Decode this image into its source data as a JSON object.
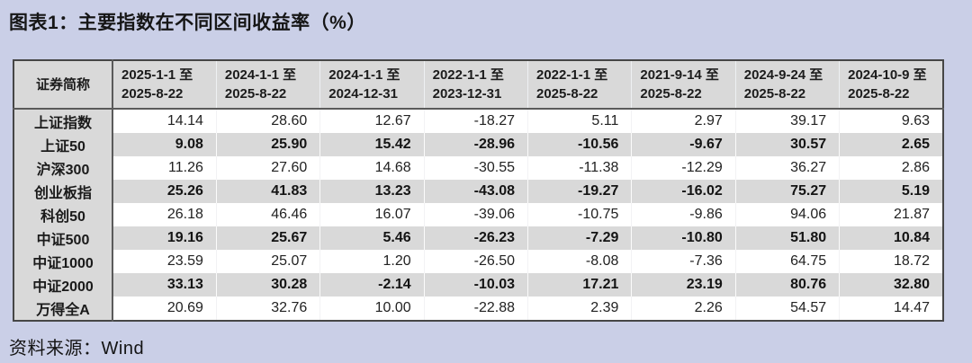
{
  "title": "图表1：主要指数在不同区间收益率（%）",
  "source": "资料来源：Wind",
  "colors": {
    "page_background": "#cacfe7",
    "header_and_stripe_gray": "#d9d9d9",
    "table_border": "#464646",
    "text": "#1a1a1a",
    "white_row": "#ffffff"
  },
  "chart_data": {
    "type": "table",
    "title": "图表1：主要指数在不同区间收益率（%）",
    "row_header_label": "证券简称",
    "period_columns": [
      {
        "line1": "2025-1-1 至",
        "line2": "2025-8-22"
      },
      {
        "line1": "2024-1-1 至",
        "line2": "2025-8-22"
      },
      {
        "line1": "2024-1-1 至",
        "line2": "2024-12-31"
      },
      {
        "line1": "2022-1-1 至",
        "line2": "2023-12-31"
      },
      {
        "line1": "2022-1-1 至",
        "line2": "2025-8-22"
      },
      {
        "line1": "2021-9-14 至",
        "line2": "2025-8-22"
      },
      {
        "line1": "2024-9-24 至",
        "line2": "2025-8-22"
      },
      {
        "line1": "2024-10-9 至",
        "line2": "2025-8-22"
      }
    ],
    "rows": [
      {
        "name": "上证指数",
        "values": [
          "14.14",
          "28.60",
          "12.67",
          "-18.27",
          "5.11",
          "2.97",
          "39.17",
          "9.63"
        ]
      },
      {
        "name": "上证50",
        "values": [
          "9.08",
          "25.90",
          "15.42",
          "-28.96",
          "-10.56",
          "-9.67",
          "30.57",
          "2.65"
        ]
      },
      {
        "name": "沪深300",
        "values": [
          "11.26",
          "27.60",
          "14.68",
          "-30.55",
          "-11.38",
          "-12.29",
          "36.27",
          "2.86"
        ]
      },
      {
        "name": "创业板指",
        "values": [
          "25.26",
          "41.83",
          "13.23",
          "-43.08",
          "-19.27",
          "-16.02",
          "75.27",
          "5.19"
        ]
      },
      {
        "name": "科创50",
        "values": [
          "26.18",
          "46.46",
          "16.07",
          "-39.06",
          "-10.75",
          "-9.86",
          "94.06",
          "21.87"
        ]
      },
      {
        "name": "中证500",
        "values": [
          "19.16",
          "25.67",
          "5.46",
          "-26.23",
          "-7.29",
          "-10.80",
          "51.80",
          "10.84"
        ]
      },
      {
        "name": "中证1000",
        "values": [
          "23.59",
          "25.07",
          "1.20",
          "-26.50",
          "-8.08",
          "-7.36",
          "64.75",
          "18.72"
        ]
      },
      {
        "name": "中证2000",
        "values": [
          "33.13",
          "30.28",
          "-2.14",
          "-10.03",
          "17.21",
          "23.19",
          "80.76",
          "32.80"
        ]
      },
      {
        "name": "万得全A",
        "values": [
          "20.69",
          "32.76",
          "10.00",
          "-22.88",
          "2.39",
          "2.26",
          "54.57",
          "14.47"
        ]
      }
    ]
  }
}
